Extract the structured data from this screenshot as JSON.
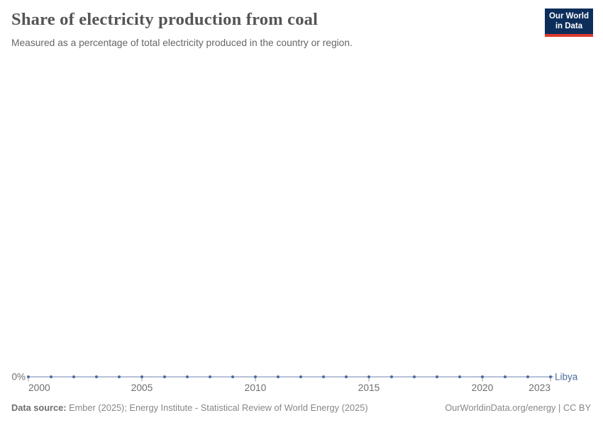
{
  "header": {
    "title": "Share of electricity production from coal",
    "subtitle": "Measured as a percentage of total electricity produced in the country or region."
  },
  "logo": {
    "text": "Our World\nin Data",
    "bg_color": "#0d2e5b",
    "bar_color": "#dc3a2f"
  },
  "chart": {
    "entity_label": "Libya",
    "series_color": "#4C6A9C",
    "axis_text_color": "#6e6e6e",
    "y_zero_label": "0%",
    "x_tick_labels": [
      "2000",
      "2005",
      "2010",
      "2015",
      "2020",
      "2023"
    ]
  },
  "chart_data": {
    "type": "line",
    "title": "Share of electricity production from coal",
    "xlabel": "",
    "ylabel": "",
    "x": [
      2000,
      2001,
      2002,
      2003,
      2004,
      2005,
      2006,
      2007,
      2008,
      2009,
      2010,
      2011,
      2012,
      2013,
      2014,
      2015,
      2016,
      2017,
      2018,
      2019,
      2020,
      2021,
      2022,
      2023
    ],
    "x_ticks": [
      2000,
      2005,
      2010,
      2015,
      2020,
      2023
    ],
    "ylim": [
      0,
      0
    ],
    "grid": false,
    "legend_position": "end-of-line",
    "series": [
      {
        "name": "Libya",
        "color": "#4C6A9C",
        "values": [
          0,
          0,
          0,
          0,
          0,
          0,
          0,
          0,
          0,
          0,
          0,
          0,
          0,
          0,
          0,
          0,
          0,
          0,
          0,
          0,
          0,
          0,
          0,
          0
        ]
      }
    ]
  },
  "footer": {
    "data_source_label": "Data source:",
    "data_source_text": " Ember (2025); Energy Institute - Statistical Review of World Energy (2025)",
    "rights": "OurWorldinData.org/energy | CC BY"
  }
}
